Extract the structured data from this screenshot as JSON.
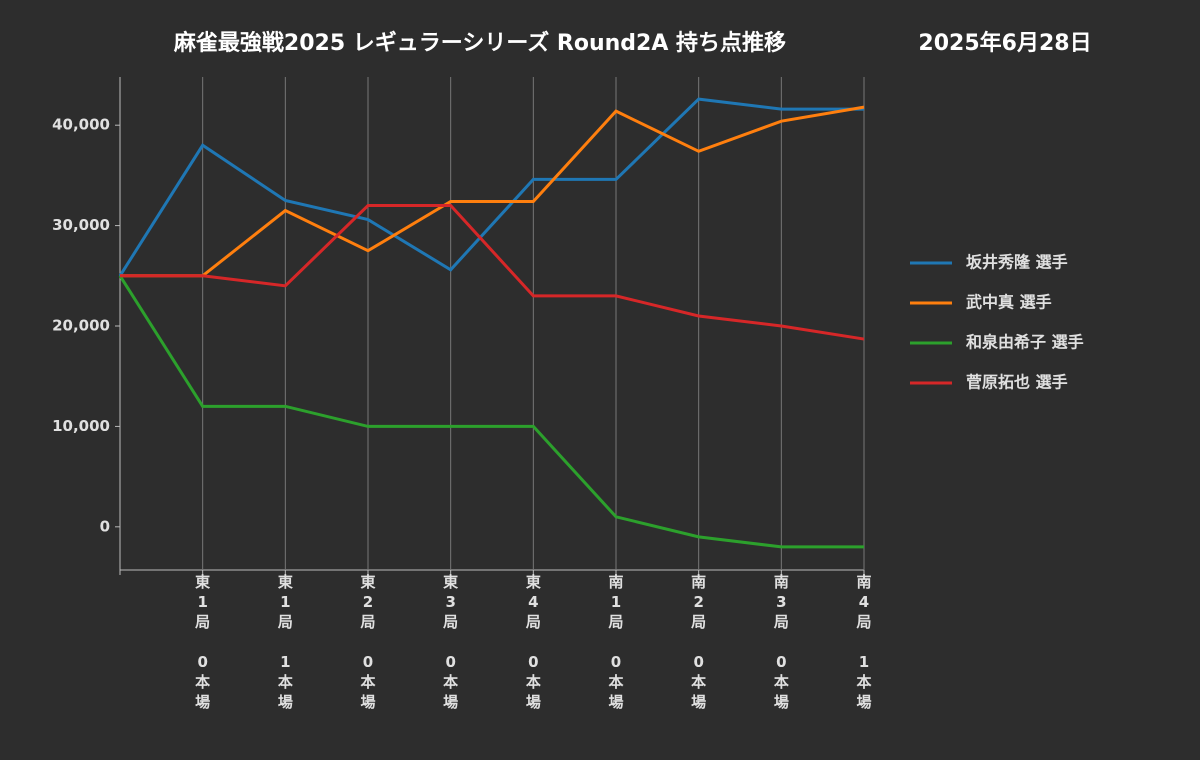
{
  "chart_data": {
    "type": "line",
    "title": "麻雀最強戦2025 レギュラーシリーズ Round2A 持ち点推移",
    "date": "2025年6月28日",
    "categories": [
      null,
      "東1局 0本場",
      "東1局 1本場",
      "東2局 0本場",
      "東3局 0本場",
      "東4局 0本場",
      "南1局 0本場",
      "南2局 0本場",
      "南3局 0本場",
      "南4局 1本場"
    ],
    "series": [
      {
        "name": "坂井秀隆 選手",
        "color": "#1f77b4",
        "values": [
          25000,
          38000,
          32500,
          30600,
          25600,
          34600,
          34600,
          42600,
          41600,
          41600
        ]
      },
      {
        "name": "武中真 選手",
        "color": "#ff7f0e",
        "values": [
          25000,
          25000,
          31500,
          27500,
          32400,
          32400,
          41400,
          37400,
          40400,
          41800
        ]
      },
      {
        "name": "和泉由希子 選手",
        "color": "#2ca02c",
        "values": [
          25000,
          12000,
          12000,
          10000,
          10000,
          10000,
          1000,
          -1000,
          -2000,
          -2000
        ]
      },
      {
        "name": "菅原拓也 選手",
        "color": "#d62728",
        "values": [
          25000,
          25000,
          24000,
          32000,
          32000,
          23000,
          23000,
          21000,
          20000,
          18700
        ]
      }
    ],
    "ylim": [
      -4300,
      44800
    ],
    "yticks": [
      0,
      {
        "value": 10000,
        "label": "10,000"
      },
      {
        "value": 20000,
        "label": "20,000"
      },
      {
        "value": 30000,
        "label": "30,000"
      },
      {
        "value": 40000,
        "label": "40,000"
      }
    ],
    "grid": true,
    "legend": "right"
  }
}
